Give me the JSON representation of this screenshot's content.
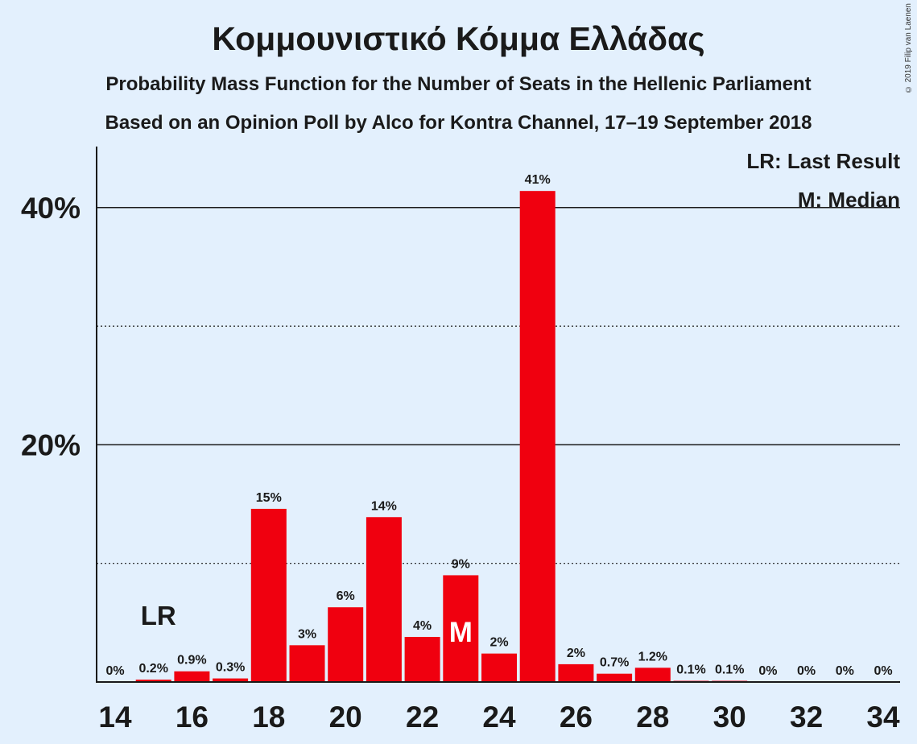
{
  "header": {
    "title": "Κομμουνιστικό Κόμμα Ελλάδας",
    "subtitle1": "Probability Mass Function for the Number of Seats in the Hellenic Parliament",
    "subtitle2": "Based on an Opinion Poll by Alco for Kontra Channel, 17–19 September 2018",
    "copyright": "© 2019 Filip van Laenen"
  },
  "legend": {
    "lr": "LR: Last Result",
    "m": "M: Median"
  },
  "markers": {
    "lr_label": "LR",
    "lr_seat": 15,
    "median_label": "M",
    "median_seat": 23
  },
  "chart_data": {
    "type": "bar",
    "title": "Κομμουνιστικό Κόμμα Ελλάδας",
    "x": [
      14,
      15,
      16,
      17,
      18,
      19,
      20,
      21,
      22,
      23,
      24,
      25,
      26,
      27,
      28,
      29,
      30,
      31,
      32,
      33,
      34
    ],
    "values": [
      0,
      0.2,
      0.9,
      0.3,
      14.6,
      3.1,
      6.3,
      13.9,
      3.8,
      9.0,
      2.4,
      41.4,
      1.5,
      0.7,
      1.2,
      0.1,
      0.1,
      0,
      0,
      0,
      0
    ],
    "labels": [
      "0%",
      "0.2%",
      "0.9%",
      "0.3%",
      "15%",
      "3%",
      "6%",
      "14%",
      "4%",
      "9%",
      "2%",
      "41%",
      "2%",
      "0.7%",
      "1.2%",
      "0.1%",
      "0.1%",
      "0%",
      "0%",
      "0%",
      "0%"
    ],
    "x_tick_labels": [
      "14",
      "16",
      "18",
      "20",
      "22",
      "24",
      "26",
      "28",
      "30",
      "32",
      "34"
    ],
    "y_tick_labels": [
      "20%",
      "40%"
    ],
    "ylim": [
      0,
      45
    ],
    "bar_color": "#f0000f",
    "grid": "solid at 20% and 40%, dotted at 10% and 30%",
    "legend_position": "top-right"
  }
}
